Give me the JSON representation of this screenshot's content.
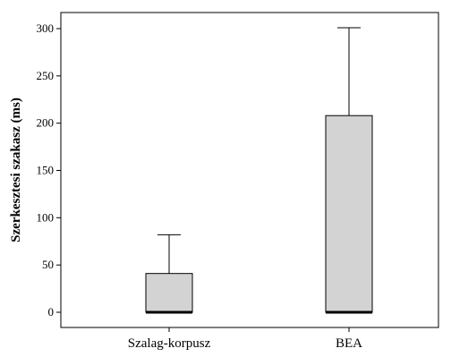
{
  "chart_data": {
    "type": "boxplot",
    "title": "",
    "xlabel": "",
    "ylabel": "Szerkesztesi szakasz (ms)",
    "ylim": [
      -10,
      320
    ],
    "yticks": [
      0,
      50,
      100,
      150,
      200,
      250,
      300
    ],
    "grid": false,
    "categories": [
      "Szalag-korpusz",
      "BEA"
    ],
    "boxes": [
      {
        "category": "Szalag-korpusz",
        "min": 0,
        "q1": 0,
        "median": 0,
        "q3": 41,
        "max": 82
      },
      {
        "category": "BEA",
        "min": 0,
        "q1": 0,
        "median": 0,
        "q3": 208,
        "max": 301
      }
    ],
    "colors": {
      "box_fill": "#d3d3d3",
      "box_stroke": "#000000",
      "median": "#000000",
      "axis": "#000000"
    }
  }
}
